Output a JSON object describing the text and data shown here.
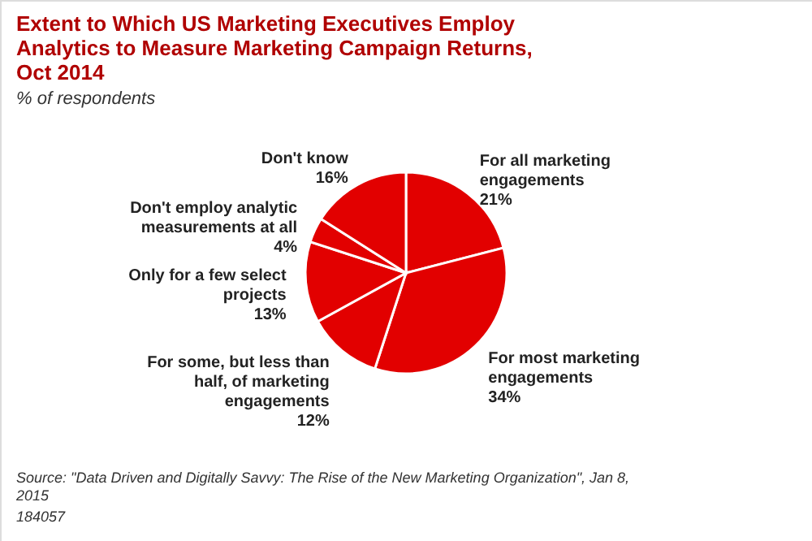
{
  "chart_data": {
    "type": "pie",
    "title": [
      "Extent to Which US Marketing Executives Employ",
      "Analytics to Measure Marketing Campaign Returns,",
      "Oct 2014"
    ],
    "subtitle": "% of respondents",
    "categories": [
      "For all marketing engagements",
      "For most marketing engagements",
      "For some, but less than half, of marketing engagements",
      "Only for a few select projects",
      "Don't employ analytic measurements at all",
      "Don't know"
    ],
    "values": [
      21,
      34,
      12,
      13,
      4,
      16
    ],
    "colors": [
      "#e20000",
      "#e20000",
      "#e20000",
      "#e20000",
      "#e20000",
      "#e20000"
    ],
    "value_labels": [
      "21%",
      "34%",
      "12%",
      "13%",
      "4%",
      "16%"
    ],
    "annotations": [
      "Source: \"Data Driven and Digitally Savvy: The Rise of the New Marketing Organization\", Jan 8, 2015",
      "184057"
    ]
  }
}
